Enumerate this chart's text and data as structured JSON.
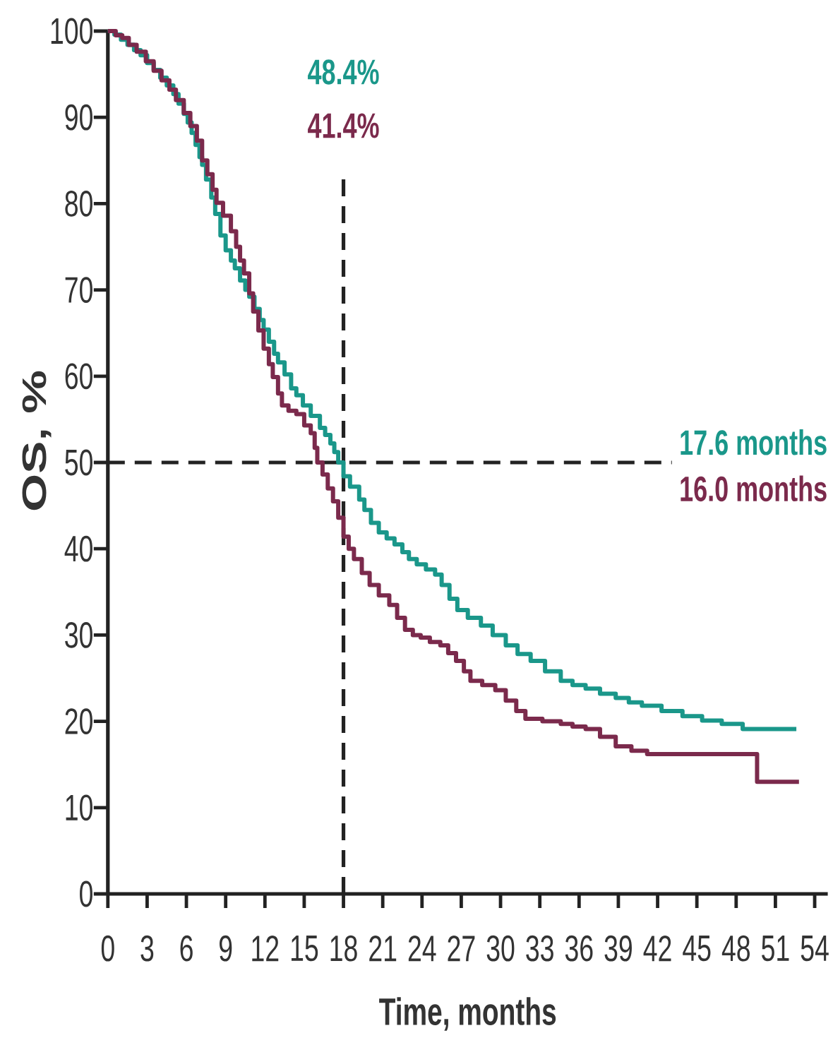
{
  "chart_data": {
    "type": "step",
    "xlabel": "Time, months",
    "ylabel": "OS, %",
    "xlim": [
      0,
      55
    ],
    "ylim": [
      0,
      100
    ],
    "xticks": [
      0,
      3,
      6,
      9,
      12,
      15,
      18,
      21,
      24,
      27,
      30,
      33,
      36,
      39,
      42,
      45,
      48,
      51,
      54
    ],
    "yticks": [
      0,
      10,
      20,
      30,
      40,
      50,
      60,
      70,
      80,
      90,
      100
    ],
    "series": [
      {
        "color": "#1a978a",
        "x": [
          0,
          0.5,
          1.0,
          1.5,
          2.0,
          2.5,
          3.0,
          3.5,
          4.0,
          4.5,
          5.0,
          5.4,
          5.8,
          6.1,
          6.4,
          6.7,
          7.0,
          7.2,
          7.5,
          7.9,
          8.2,
          8.6,
          9.0,
          9.4,
          9.7,
          10.1,
          10.5,
          10.8,
          11.2,
          11.6,
          11.9,
          12.3,
          12.7,
          13.0,
          13.5,
          14.0,
          14.4,
          14.9,
          15.5,
          16.2,
          16.6,
          17.0,
          17.3,
          17.6,
          18.0,
          18.5,
          19.2,
          19.6,
          20.1,
          20.7,
          21.3,
          21.9,
          22.5,
          23.0,
          23.6,
          24.3,
          25.0,
          25.5,
          26.1,
          26.7,
          27.5,
          28.5,
          29.4,
          30.4,
          31.3,
          32.3,
          33.4,
          34.6,
          35.5,
          36.5,
          37.6,
          38.8,
          39.8,
          40.8,
          42.3,
          43.9,
          45.4,
          46.9,
          48.5,
          52.6
        ],
        "values": [
          100,
          99.6,
          99.0,
          98.4,
          97.8,
          97.2,
          96.3,
          95.5,
          94.6,
          93.7,
          92.7,
          91.6,
          90.4,
          89.4,
          88.2,
          86.8,
          85.4,
          84.5,
          82.8,
          80.7,
          78.8,
          76.3,
          74.6,
          73.4,
          72.5,
          71.1,
          70.0,
          69.2,
          67.8,
          66.5,
          65.4,
          64.0,
          62.6,
          61.6,
          60.2,
          58.6,
          57.8,
          56.6,
          55.4,
          54.0,
          53.2,
          52.2,
          51.2,
          50.0,
          48.4,
          47.2,
          45.7,
          44.5,
          43.0,
          41.9,
          41.2,
          40.5,
          39.6,
          38.8,
          38.2,
          37.6,
          37.0,
          35.8,
          34.2,
          32.9,
          32.0,
          31.1,
          30.0,
          28.8,
          27.8,
          27.0,
          25.8,
          24.7,
          24.2,
          23.8,
          23.2,
          22.7,
          22.2,
          21.8,
          21.2,
          20.6,
          20.1,
          19.7,
          19.1,
          19.1
        ]
      },
      {
        "color": "#7b2a4c",
        "x": [
          0,
          0.6,
          1.1,
          1.6,
          2.2,
          2.9,
          3.5,
          4.1,
          4.7,
          5.2,
          5.8,
          6.3,
          6.8,
          7.2,
          7.6,
          8.0,
          8.3,
          8.8,
          9.4,
          9.8,
          10.1,
          10.4,
          10.8,
          11.1,
          11.5,
          11.9,
          12.3,
          12.6,
          13.0,
          13.3,
          13.8,
          14.4,
          15.0,
          15.5,
          15.8,
          16.0,
          16.4,
          16.8,
          17.2,
          17.6,
          18.0,
          18.4,
          18.8,
          19.4,
          20.0,
          20.7,
          21.5,
          22.1,
          22.7,
          23.3,
          23.9,
          24.6,
          25.4,
          26.0,
          26.6,
          27.2,
          27.7,
          28.6,
          29.6,
          30.4,
          31.2,
          31.9,
          33.2,
          34.6,
          35.5,
          36.5,
          37.6,
          38.8,
          40.0,
          41.2,
          49.6,
          52.8
        ],
        "values": [
          100,
          99.5,
          99.2,
          98.4,
          97.6,
          96.5,
          95.4,
          94.3,
          93.2,
          92.0,
          90.5,
          89.0,
          87.3,
          85.0,
          83.4,
          81.6,
          80.1,
          78.6,
          76.8,
          75.0,
          73.4,
          71.9,
          69.6,
          67.5,
          65.3,
          63.2,
          61.4,
          59.9,
          58.0,
          56.6,
          56.0,
          55.6,
          54.3,
          53.4,
          51.7,
          50.0,
          48.6,
          47.0,
          45.5,
          43.6,
          41.4,
          40.0,
          38.8,
          37.2,
          35.8,
          34.6,
          33.5,
          32.0,
          30.6,
          30.0,
          29.7,
          29.2,
          28.8,
          27.9,
          27.0,
          25.8,
          24.7,
          24.2,
          23.6,
          22.4,
          21.2,
          20.3,
          20.0,
          19.7,
          19.4,
          19.1,
          18.2,
          17.1,
          16.6,
          16.2,
          13.0,
          13.0
        ]
      }
    ],
    "ref_lines": [
      {
        "axis": "x",
        "value": 18,
        "line_style": "dashed",
        "color": "#222222"
      },
      {
        "axis": "y",
        "value": 50,
        "line_style": "dashed",
        "color": "#222222"
      }
    ],
    "annotations": [
      "48.4%",
      "41.4%",
      "17.6 months",
      "16.0 months"
    ]
  }
}
